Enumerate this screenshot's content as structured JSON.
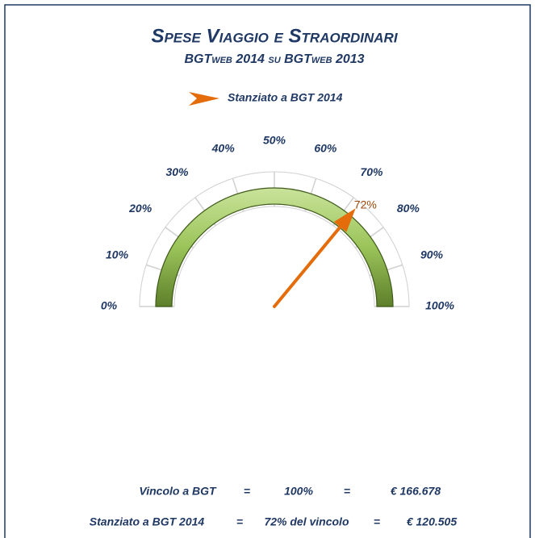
{
  "chart_data": {
    "type": "gauge",
    "title": "Spese Viaggio e Straordinari",
    "subtitle": "BGTweb 2014 su BGTweb 2013",
    "legend": "top",
    "series": [
      {
        "name": "Stanziato a BGT 2014",
        "color": "#e46c0a",
        "value": 72,
        "value_label": "72%"
      }
    ],
    "xlim": [
      0,
      100
    ],
    "xticks": [
      {
        "value": 0,
        "label": "0%"
      },
      {
        "value": 10,
        "label": "10%"
      },
      {
        "value": 20,
        "label": "20%"
      },
      {
        "value": 30,
        "label": "30%"
      },
      {
        "value": 40,
        "label": "40%"
      },
      {
        "value": 50,
        "label": "50%"
      },
      {
        "value": 60,
        "label": "60%"
      },
      {
        "value": 70,
        "label": "70%"
      },
      {
        "value": 80,
        "label": "80%"
      },
      {
        "value": 90,
        "label": "90%"
      },
      {
        "value": 100,
        "label": "100%"
      }
    ],
    "annotations": [
      [
        "Vincolo a BGT",
        "=",
        "100%",
        "=",
        "€ 166.678"
      ],
      [
        "Stanziato a BGT 2014",
        "=",
        "72% del vincolo",
        "=",
        "€ 120.505"
      ]
    ]
  }
}
